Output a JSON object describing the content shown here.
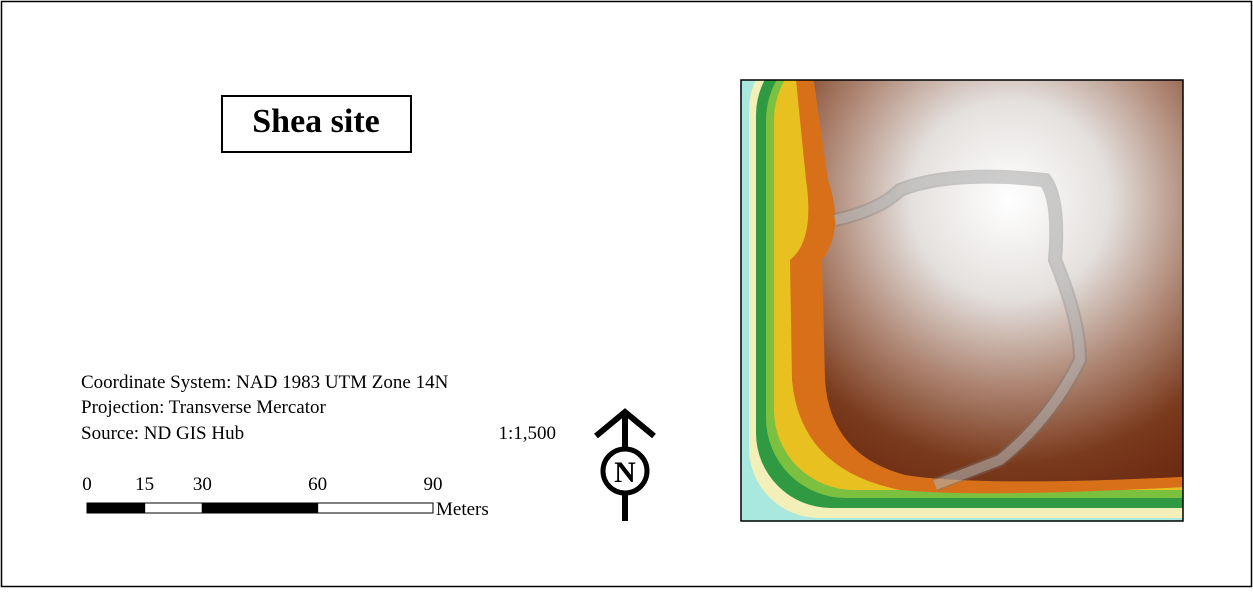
{
  "title": "Shea site",
  "notes": [
    "Coordinate System: NAD 1983 UTM Zone 14N",
    "Projection: Transverse Mercator",
    "Source: ND GIS Hub"
  ],
  "scale": "1:1,500",
  "scale_bar": {
    "ticks": [
      0,
      15,
      30,
      60,
      90
    ],
    "unit": "Meters"
  },
  "north_arrow": "N"
}
